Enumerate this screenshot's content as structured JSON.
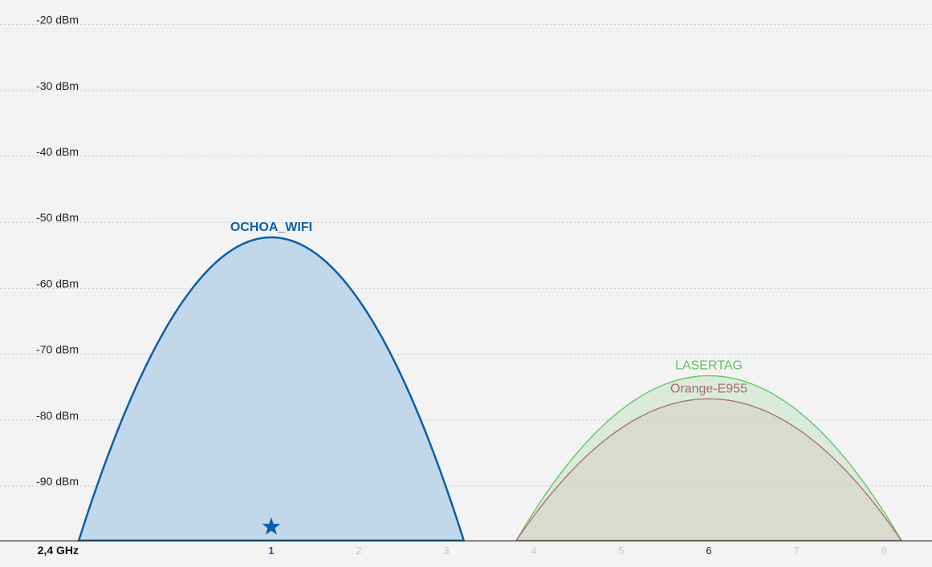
{
  "chart_data": {
    "type": "area",
    "band_label": "2,4 GHz",
    "y_unit": "dBm",
    "ylim": [
      -99,
      -17
    ],
    "xlim": [
      -2.1,
      8.55
    ],
    "y_ticks": [
      {
        "value": -20,
        "label": "-20 dBm"
      },
      {
        "value": -30,
        "label": "-30 dBm"
      },
      {
        "value": -40,
        "label": "-40 dBm"
      },
      {
        "value": -50,
        "label": "-50 dBm"
      },
      {
        "value": -60,
        "label": "-60 dBm"
      },
      {
        "value": -70,
        "label": "-70 dBm"
      },
      {
        "value": -80,
        "label": "-80 dBm"
      },
      {
        "value": -90,
        "label": "-90 dBm"
      }
    ],
    "x_ticks": [
      {
        "value": 1,
        "label": "1",
        "state": "active"
      },
      {
        "value": 2,
        "label": "2",
        "state": "empty"
      },
      {
        "value": 3,
        "label": "3",
        "state": "empty"
      },
      {
        "value": 4,
        "label": "4",
        "state": "empty"
      },
      {
        "value": 5,
        "label": "5",
        "state": "empty"
      },
      {
        "value": 6,
        "label": "6",
        "state": "occupied"
      },
      {
        "value": 7,
        "label": "7",
        "state": "empty"
      },
      {
        "value": 8,
        "label": "8",
        "state": "empty"
      }
    ],
    "grid": true,
    "series": [
      {
        "name": "OCHOA_WIFI",
        "channel": 1,
        "channel_from": -1.2,
        "channel_to": 3.2,
        "signal_dbm": -53,
        "color": "#0a5fa8",
        "fill": "#a9c8e6",
        "selected": true
      },
      {
        "name": "LASERTAG",
        "channel": 6,
        "channel_from": 3.8,
        "channel_to": 8.2,
        "signal_dbm": -74,
        "color": "#5ac45a",
        "fill": "#bfe3bf",
        "selected": false
      },
      {
        "name": "Orange-E955",
        "channel": 6,
        "channel_from": 3.8,
        "channel_to": 8.2,
        "signal_dbm": -77.5,
        "color": "#a86a6a",
        "fill": "#d8c8c0",
        "selected": false
      }
    ],
    "connected_marker": {
      "icon": "star-icon",
      "channel": 1,
      "color": "#0a5fa8"
    },
    "colors": {
      "background": "#f3f3f3",
      "axis": "#333333",
      "grid": "#c9c9c9"
    }
  }
}
